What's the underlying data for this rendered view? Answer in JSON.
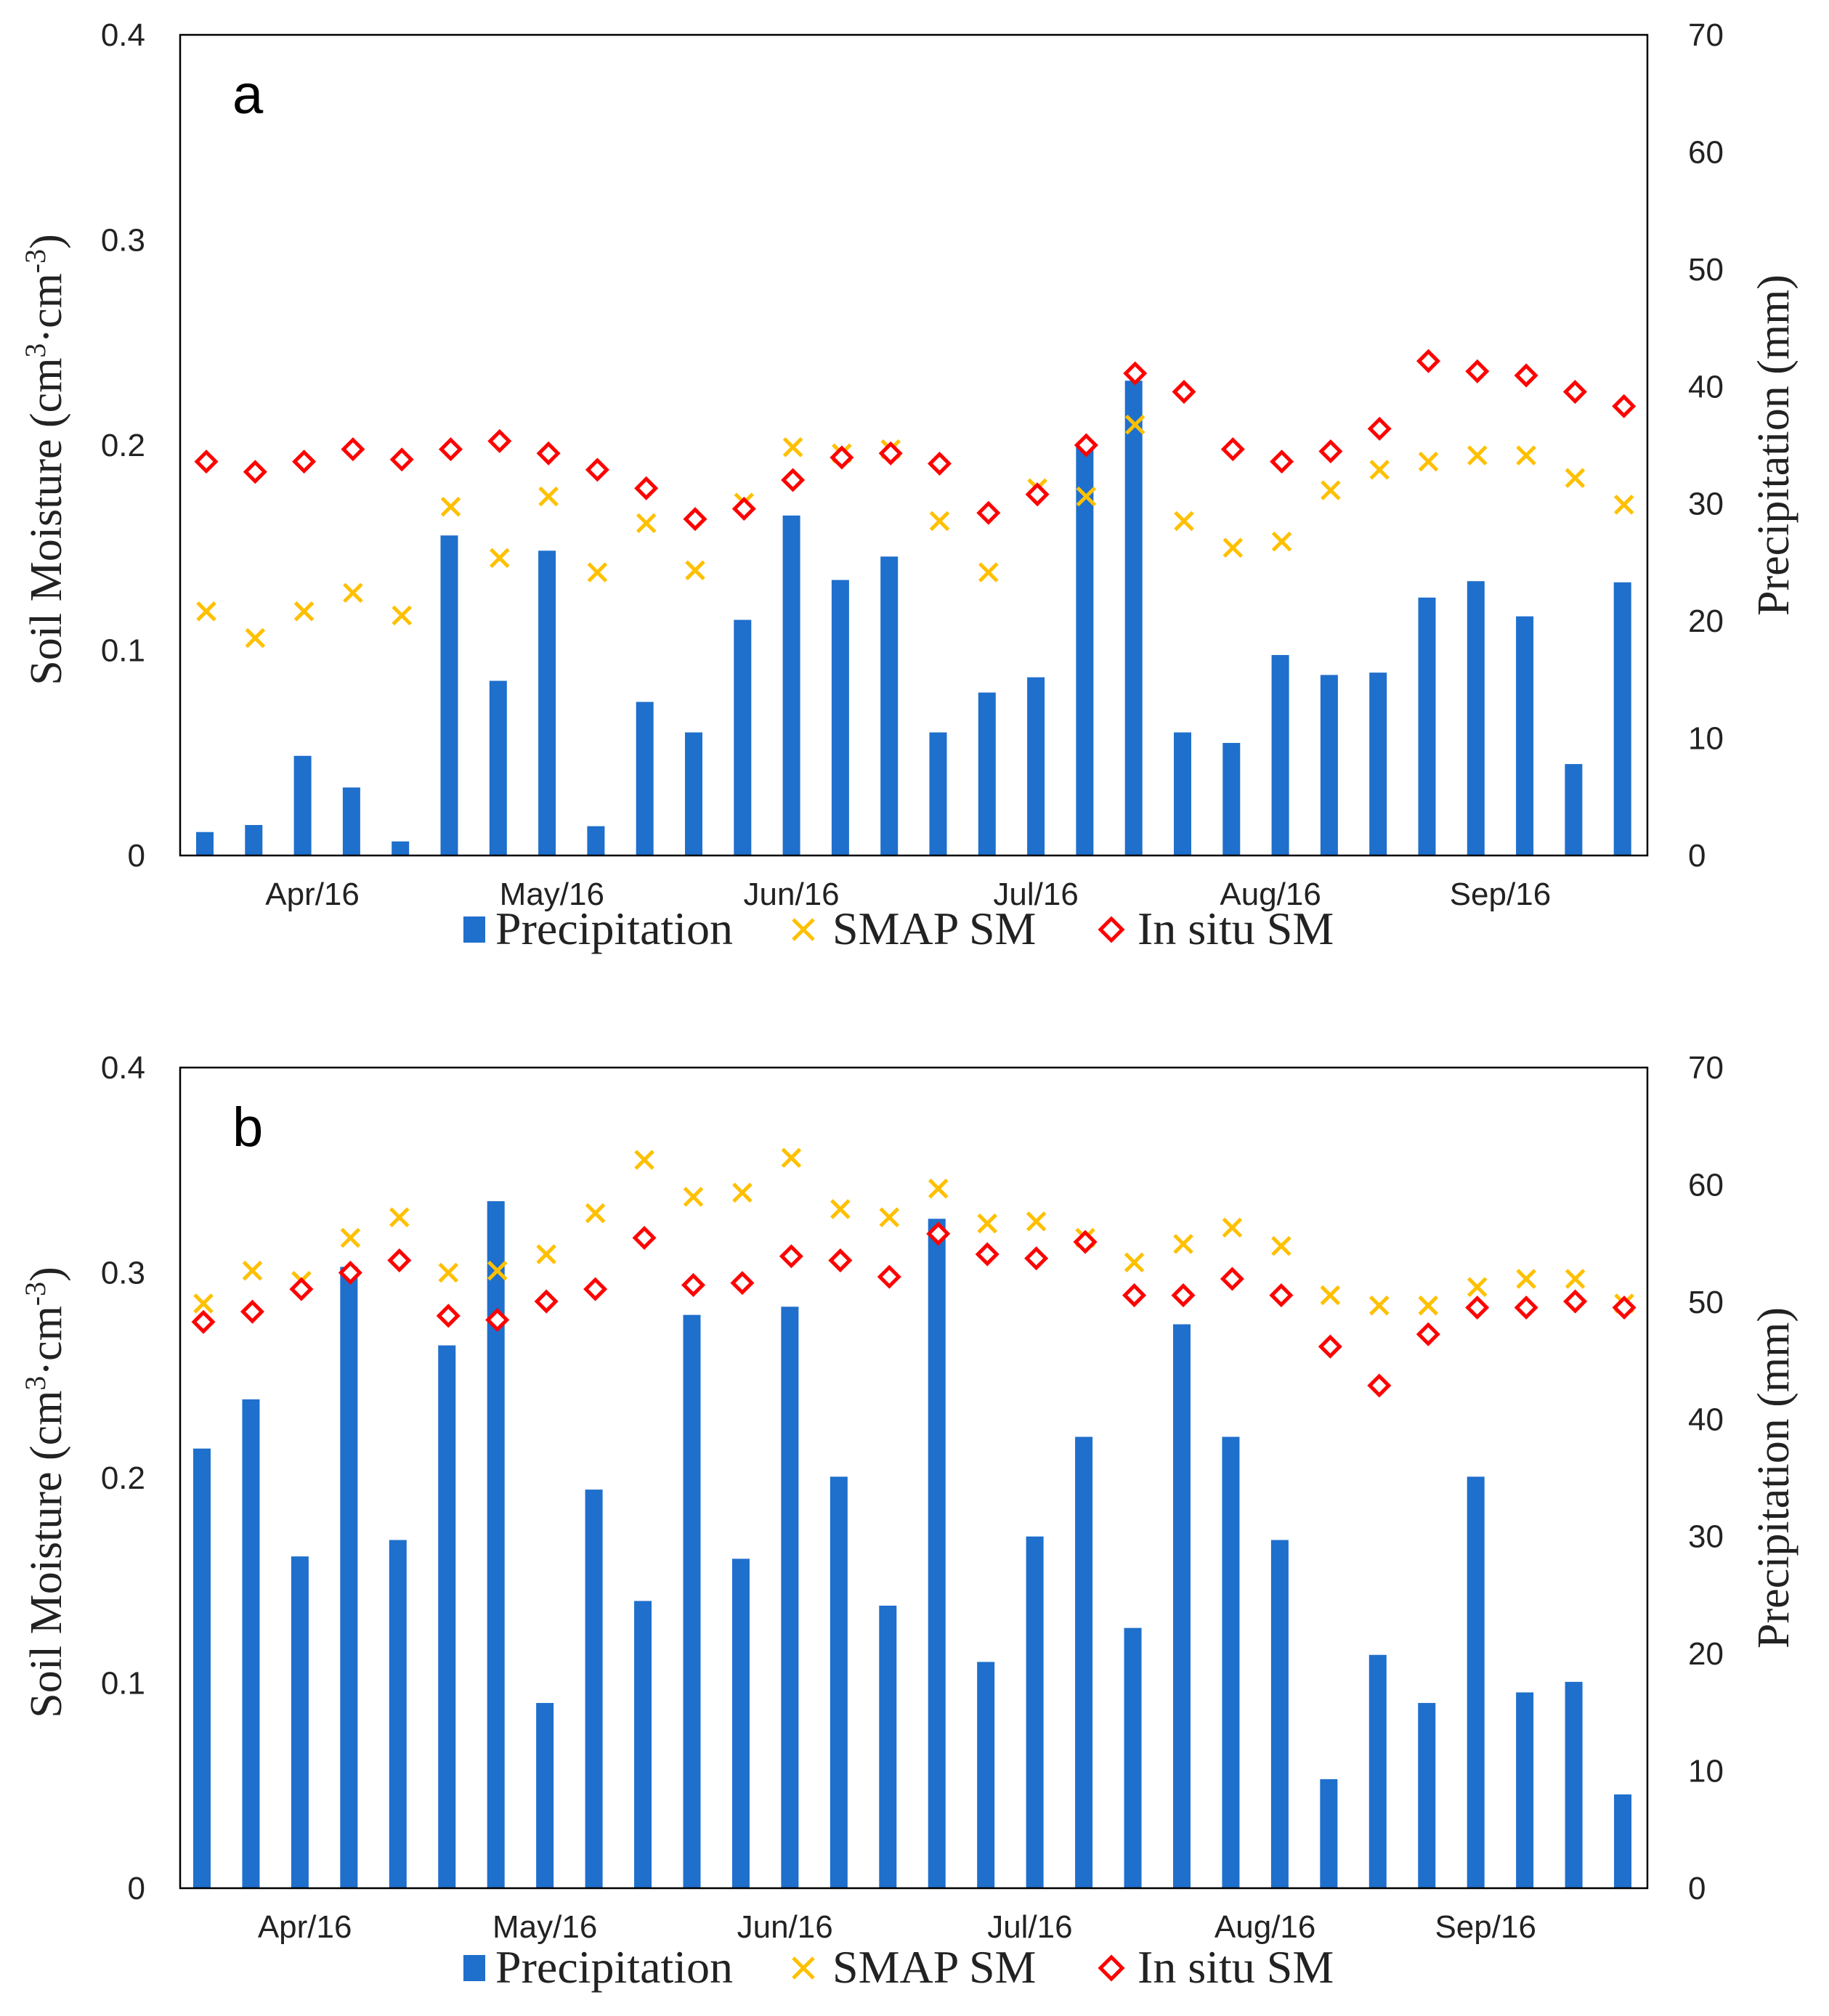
{
  "chart_data": [
    {
      "type": "bar+scatter",
      "panel_label": "a",
      "ylabel_left_main": "Soil Moisture (cm",
      "ylabel_left_sup1": "3",
      "ylabel_left_mid": "·cm",
      "ylabel_left_sup2": "-3",
      "ylabel_left_end": ")",
      "ylabel_right": "Precipitation (mm)",
      "ylim_left": [
        0,
        0.4
      ],
      "ylim_right": [
        0,
        70
      ],
      "yticks_left": [
        "0",
        "0.1",
        "0.2",
        "0.3",
        "0.4"
      ],
      "yticks_right": [
        "0",
        "10",
        "20",
        "30",
        "40",
        "50",
        "60",
        "70"
      ],
      "months": [
        {
          "label": "Apr/16",
          "at": 2.2
        },
        {
          "label": "May/16",
          "at": 7.1
        },
        {
          "label": "Jun/16",
          "at": 12.0
        },
        {
          "label": "Jul/16",
          "at": 17.0
        },
        {
          "label": "Aug/16",
          "at": 21.8
        },
        {
          "label": "Sep/16",
          "at": 26.5
        }
      ],
      "legend": [
        "Precipitation",
        "SMAP SM",
        "In situ SM"
      ],
      "precipitation": [
        2.0,
        2.6,
        8.5,
        5.8,
        1.2,
        27.3,
        14.9,
        26.0,
        2.5,
        13.1,
        10.5,
        20.1,
        29.0,
        23.5,
        25.5,
        10.5,
        13.9,
        15.2,
        35.0,
        40.5,
        10.5,
        9.6,
        17.1,
        15.4,
        15.6,
        22.0,
        23.4,
        20.4,
        7.8,
        23.3
      ],
      "smap_sm": [
        0.119,
        0.106,
        0.119,
        0.128,
        0.117,
        0.17,
        0.145,
        0.175,
        0.138,
        0.162,
        0.139,
        0.172,
        0.199,
        0.196,
        0.198,
        0.163,
        0.138,
        0.179,
        0.175,
        0.21,
        0.163,
        0.15,
        0.153,
        0.178,
        0.188,
        0.192,
        0.195,
        0.195,
        0.184,
        0.171
      ],
      "insitu_sm": [
        0.192,
        0.187,
        0.192,
        0.198,
        0.193,
        0.198,
        0.202,
        0.196,
        0.188,
        0.179,
        0.164,
        0.169,
        0.183,
        0.194,
        0.196,
        0.191,
        0.167,
        0.176,
        0.2,
        0.235,
        0.226,
        0.198,
        0.192,
        0.197,
        0.208,
        0.241,
        0.236,
        0.234,
        0.226,
        0.219
      ]
    },
    {
      "type": "bar+scatter",
      "panel_label": "b",
      "ylabel_left_main": "Soil Moisture (cm",
      "ylabel_left_sup1": "3",
      "ylabel_left_mid": "·cm",
      "ylabel_left_sup2": "-3",
      "ylabel_left_end": ")",
      "ylabel_right": "Precipitation (mm)",
      "ylim_left": [
        0,
        0.4
      ],
      "ylim_right": [
        0,
        70
      ],
      "yticks_left": [
        "0",
        "0.1",
        "0.2",
        "0.3",
        "0.4"
      ],
      "yticks_right": [
        "0",
        "10",
        "20",
        "30",
        "40",
        "50",
        "60",
        "70"
      ],
      "months": [
        {
          "label": "Apr/16",
          "at": 2.1
        },
        {
          "label": "May/16",
          "at": 7.0
        },
        {
          "label": "Jun/16",
          "at": 11.9
        },
        {
          "label": "Jul/16",
          "at": 16.9
        },
        {
          "label": "Aug/16",
          "at": 21.7
        },
        {
          "label": "Sep/16",
          "at": 26.2
        }
      ],
      "legend": [
        "Precipitation",
        "SMAP SM",
        "In situ SM"
      ],
      "precipitation": [
        37.5,
        41.7,
        28.3,
        53.0,
        29.7,
        46.3,
        58.6,
        15.8,
        34.0,
        24.5,
        48.9,
        28.1,
        49.6,
        35.1,
        24.1,
        57.1,
        19.3,
        30.0,
        38.5,
        22.2,
        48.1,
        38.5,
        29.7,
        9.3,
        19.9,
        15.8,
        35.1,
        16.7,
        17.6,
        8.0
      ],
      "smap_sm": [
        0.285,
        0.301,
        0.296,
        0.317,
        0.327,
        0.3,
        0.301,
        0.309,
        0.329,
        0.355,
        0.337,
        0.339,
        0.356,
        0.331,
        0.327,
        0.341,
        0.324,
        0.325,
        0.317,
        0.305,
        0.314,
        0.322,
        0.313,
        0.289,
        0.284,
        0.284,
        0.293,
        0.297,
        0.297,
        0.285
      ],
      "insitu_sm": [
        0.276,
        0.281,
        0.292,
        0.3,
        0.306,
        0.279,
        0.277,
        0.286,
        0.292,
        0.317,
        0.294,
        0.295,
        0.308,
        0.306,
        0.298,
        0.319,
        0.309,
        0.307,
        0.315,
        0.289,
        0.289,
        0.297,
        0.289,
        0.264,
        0.245,
        0.27,
        0.283,
        0.283,
        0.286,
        0.283
      ]
    }
  ]
}
